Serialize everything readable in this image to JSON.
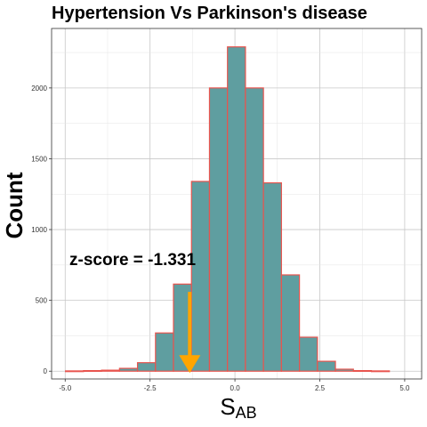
{
  "chart_data": {
    "type": "bar",
    "title": "Hypertension Vs Parkinson's disease",
    "xlabel_main": "S",
    "xlabel_sub": "AB",
    "ylabel": "Count",
    "xlim": [
      -5.4,
      5.5
    ],
    "ylim": [
      -55,
      2420
    ],
    "x_ticks": [
      -5.0,
      -2.5,
      0.0,
      2.5,
      5.0
    ],
    "x_tick_labels": [
      "-5.0",
      "-2.5",
      "0.0",
      "2.5",
      "5.0"
    ],
    "y_ticks": [
      0,
      500,
      1000,
      1500,
      2000
    ],
    "y_tick_labels": [
      "0",
      "500",
      "1000",
      "1500",
      "2000"
    ],
    "grid": true,
    "bin_width": 0.53,
    "bins": [
      {
        "x0": -4.99,
        "value": 2
      },
      {
        "x0": -4.46,
        "value": 4
      },
      {
        "x0": -3.93,
        "value": 7
      },
      {
        "x0": -3.4,
        "value": 20
      },
      {
        "x0": -2.87,
        "value": 60
      },
      {
        "x0": -2.34,
        "value": 270
      },
      {
        "x0": -1.81,
        "value": 615
      },
      {
        "x0": -1.28,
        "value": 1340
      },
      {
        "x0": -0.75,
        "value": 2000
      },
      {
        "x0": -0.22,
        "value": 2290
      },
      {
        "x0": 0.31,
        "value": 2000
      },
      {
        "x0": 0.84,
        "value": 1330
      },
      {
        "x0": 1.37,
        "value": 680
      },
      {
        "x0": 1.9,
        "value": 240
      },
      {
        "x0": 2.43,
        "value": 70
      },
      {
        "x0": 2.96,
        "value": 14
      },
      {
        "x0": 3.49,
        "value": 4
      },
      {
        "x0": 4.02,
        "value": 2
      }
    ],
    "annotation": {
      "text": "z-score = -1.331",
      "x": -1.331,
      "arrow_from_y": 560,
      "arrow_to_y": 0
    },
    "colors": {
      "bar_fill": "#5f9ea0",
      "bar_stroke": "#e8544e",
      "arrow": "#ffa500",
      "grid": "#c8c8c8",
      "panel_border": "#333333"
    }
  }
}
